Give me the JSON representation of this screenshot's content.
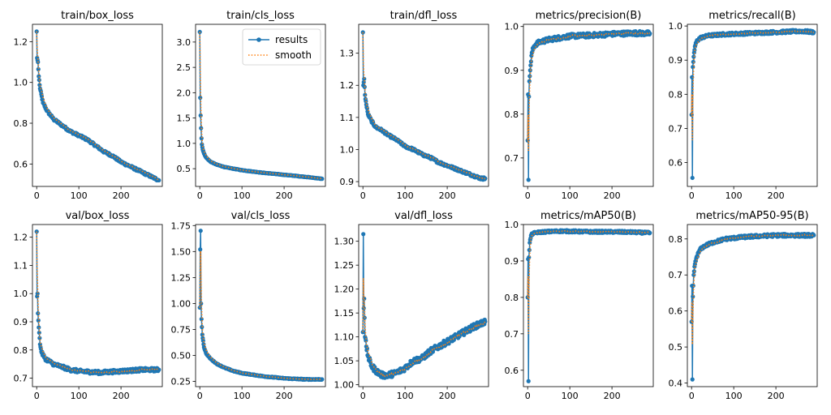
{
  "colors": {
    "results": "#1f77b4",
    "smooth": "#ff7f0e",
    "axis": "#000000"
  },
  "legend": {
    "entries": [
      "results",
      "smooth"
    ],
    "placement": "upper-right of train/cls_loss"
  },
  "chart_data": [
    {
      "type": "line",
      "title": "train/box_loss",
      "xlim": [
        -10,
        298
      ],
      "ylim": [
        0.49,
        1.285
      ],
      "xticks": [
        0,
        100,
        200
      ],
      "yticks": [
        0.6,
        0.8,
        1.0,
        1.2
      ],
      "ytick_labels": [
        "0.6",
        "0.8",
        "1.0",
        "1.2"
      ],
      "anchors": [
        [
          0,
          1.25
        ],
        [
          1,
          1.12
        ],
        [
          3,
          1.1
        ],
        [
          5,
          1.03
        ],
        [
          8,
          0.97
        ],
        [
          15,
          0.9
        ],
        [
          25,
          0.86
        ],
        [
          40,
          0.82
        ],
        [
          60,
          0.79
        ],
        [
          80,
          0.76
        ],
        [
          100,
          0.74
        ],
        [
          120,
          0.72
        ],
        [
          140,
          0.69
        ],
        [
          160,
          0.66
        ],
        [
          180,
          0.64
        ],
        [
          200,
          0.61
        ],
        [
          220,
          0.59
        ],
        [
          240,
          0.57
        ],
        [
          260,
          0.55
        ],
        [
          280,
          0.53
        ],
        [
          290,
          0.52
        ]
      ],
      "noise": 0.006
    },
    {
      "type": "line",
      "title": "train/cls_loss",
      "xlim": [
        -10,
        298
      ],
      "ylim": [
        0.15,
        3.35
      ],
      "xticks": [
        0,
        100,
        200
      ],
      "yticks": [
        0.5,
        1.0,
        1.5,
        2.0,
        2.5,
        3.0
      ],
      "ytick_labels": [
        "0.5",
        "1.0",
        "1.5",
        "2.0",
        "2.5",
        "3.0"
      ],
      "anchors": [
        [
          0,
          3.2
        ],
        [
          1,
          1.9
        ],
        [
          2,
          1.55
        ],
        [
          3,
          1.3
        ],
        [
          4,
          1.1
        ],
        [
          5,
          0.98
        ],
        [
          7,
          0.88
        ],
        [
          10,
          0.8
        ],
        [
          15,
          0.72
        ],
        [
          25,
          0.64
        ],
        [
          40,
          0.58
        ],
        [
          60,
          0.53
        ],
        [
          80,
          0.5
        ],
        [
          100,
          0.47
        ],
        [
          150,
          0.42
        ],
        [
          200,
          0.38
        ],
        [
          250,
          0.34
        ],
        [
          290,
          0.3
        ]
      ],
      "noise": 0.005
    },
    {
      "type": "line",
      "title": "train/dfl_loss",
      "xlim": [
        -10,
        298
      ],
      "ylim": [
        0.885,
        1.39
      ],
      "xticks": [
        0,
        100,
        200
      ],
      "yticks": [
        0.9,
        1.0,
        1.1,
        1.2,
        1.3
      ],
      "ytick_labels": [
        "0.9",
        "1.0",
        "1.1",
        "1.2",
        "1.3"
      ],
      "anchors": [
        [
          0,
          1.365
        ],
        [
          1,
          1.2
        ],
        [
          3,
          1.22
        ],
        [
          5,
          1.17
        ],
        [
          8,
          1.14
        ],
        [
          12,
          1.11
        ],
        [
          20,
          1.09
        ],
        [
          30,
          1.07
        ],
        [
          45,
          1.06
        ],
        [
          60,
          1.045
        ],
        [
          80,
          1.03
        ],
        [
          100,
          1.01
        ],
        [
          120,
          1.0
        ],
        [
          140,
          0.985
        ],
        [
          160,
          0.975
        ],
        [
          180,
          0.96
        ],
        [
          200,
          0.95
        ],
        [
          220,
          0.94
        ],
        [
          240,
          0.93
        ],
        [
          260,
          0.92
        ],
        [
          280,
          0.91
        ],
        [
          290,
          0.91
        ]
      ],
      "noise": 0.004
    },
    {
      "type": "line",
      "title": "metrics/precision(B)",
      "xlim": [
        -10,
        298
      ],
      "ylim": [
        0.635,
        1.005
      ],
      "xticks": [
        0,
        100,
        200
      ],
      "yticks": [
        0.7,
        0.8,
        0.9,
        1.0
      ],
      "ytick_labels": [
        "0.7",
        "0.8",
        "0.9",
        "1.0"
      ],
      "anchors": [
        [
          0,
          0.74
        ],
        [
          1,
          0.845
        ],
        [
          2,
          0.65
        ],
        [
          3,
          0.84
        ],
        [
          4,
          0.875
        ],
        [
          6,
          0.9
        ],
        [
          8,
          0.92
        ],
        [
          10,
          0.94
        ],
        [
          15,
          0.955
        ],
        [
          20,
          0.96
        ],
        [
          30,
          0.965
        ],
        [
          50,
          0.97
        ],
        [
          80,
          0.975
        ],
        [
          100,
          0.978
        ],
        [
          150,
          0.98
        ],
        [
          200,
          0.983
        ],
        [
          250,
          0.985
        ],
        [
          290,
          0.984
        ]
      ],
      "noise": 0.005
    },
    {
      "type": "line",
      "title": "metrics/recall(B)",
      "xlim": [
        -10,
        298
      ],
      "ylim": [
        0.53,
        1.005
      ],
      "xticks": [
        0,
        100,
        200
      ],
      "yticks": [
        0.6,
        0.7,
        0.8,
        0.9,
        1.0
      ],
      "ytick_labels": [
        "0.6",
        "0.7",
        "0.8",
        "0.9",
        "1.0"
      ],
      "anchors": [
        [
          0,
          0.74
        ],
        [
          1,
          0.85
        ],
        [
          2,
          0.555
        ],
        [
          3,
          0.88
        ],
        [
          5,
          0.91
        ],
        [
          8,
          0.94
        ],
        [
          12,
          0.955
        ],
        [
          20,
          0.965
        ],
        [
          40,
          0.972
        ],
        [
          80,
          0.976
        ],
        [
          120,
          0.978
        ],
        [
          200,
          0.982
        ],
        [
          260,
          0.985
        ],
        [
          290,
          0.982
        ]
      ],
      "noise": 0.004
    },
    {
      "type": "line",
      "title": "val/box_loss",
      "xlim": [
        -10,
        298
      ],
      "ylim": [
        0.67,
        1.245
      ],
      "xticks": [
        0,
        100,
        200
      ],
      "yticks": [
        0.7,
        0.8,
        0.9,
        1.0,
        1.1,
        1.2
      ],
      "ytick_labels": [
        "0.7",
        "0.8",
        "0.9",
        "1.0",
        "1.1",
        "1.2"
      ],
      "anchors": [
        [
          0,
          1.22
        ],
        [
          1,
          0.99
        ],
        [
          2,
          1.0
        ],
        [
          3,
          0.93
        ],
        [
          5,
          0.88
        ],
        [
          8,
          0.82
        ],
        [
          12,
          0.79
        ],
        [
          20,
          0.77
        ],
        [
          40,
          0.75
        ],
        [
          60,
          0.74
        ],
        [
          80,
          0.73
        ],
        [
          100,
          0.725
        ],
        [
          150,
          0.72
        ],
        [
          200,
          0.725
        ],
        [
          250,
          0.73
        ],
        [
          290,
          0.73
        ]
      ],
      "noise": 0.006
    },
    {
      "type": "line",
      "title": "val/cls_loss",
      "xlim": [
        -10,
        298
      ],
      "ylim": [
        0.2,
        1.76
      ],
      "xticks": [
        0,
        100,
        200
      ],
      "yticks": [
        0.25,
        0.5,
        0.75,
        1.0,
        1.25,
        1.5,
        1.75
      ],
      "ytick_labels": [
        "0.25",
        "0.50",
        "0.75",
        "1.00",
        "1.25",
        "1.50",
        "1.75"
      ],
      "anchors": [
        [
          0,
          0.96
        ],
        [
          1,
          1.52
        ],
        [
          2,
          1.7
        ],
        [
          3,
          1.0
        ],
        [
          4,
          0.85
        ],
        [
          6,
          0.7
        ],
        [
          10,
          0.58
        ],
        [
          15,
          0.52
        ],
        [
          25,
          0.47
        ],
        [
          40,
          0.42
        ],
        [
          60,
          0.38
        ],
        [
          80,
          0.35
        ],
        [
          100,
          0.33
        ],
        [
          150,
          0.3
        ],
        [
          200,
          0.28
        ],
        [
          250,
          0.27
        ],
        [
          290,
          0.27
        ]
      ],
      "noise": 0.004
    },
    {
      "type": "line",
      "title": "val/dfl_loss",
      "xlim": [
        -10,
        298
      ],
      "ylim": [
        0.996,
        1.335
      ],
      "xticks": [
        0,
        100,
        200
      ],
      "yticks": [
        1.0,
        1.05,
        1.1,
        1.15,
        1.2,
        1.25,
        1.3
      ],
      "ytick_labels": [
        "1.00",
        "1.05",
        "1.10",
        "1.15",
        "1.20",
        "1.25",
        "1.30"
      ],
      "anchors": [
        [
          0,
          1.11
        ],
        [
          1,
          1.315
        ],
        [
          2,
          1.16
        ],
        [
          3,
          1.18
        ],
        [
          5,
          1.1
        ],
        [
          8,
          1.08
        ],
        [
          12,
          1.06
        ],
        [
          20,
          1.04
        ],
        [
          30,
          1.03
        ],
        [
          45,
          1.02
        ],
        [
          60,
          1.02
        ],
        [
          80,
          1.025
        ],
        [
          100,
          1.035
        ],
        [
          120,
          1.05
        ],
        [
          140,
          1.055
        ],
        [
          160,
          1.07
        ],
        [
          180,
          1.08
        ],
        [
          200,
          1.09
        ],
        [
          230,
          1.105
        ],
        [
          260,
          1.12
        ],
        [
          290,
          1.132
        ]
      ],
      "noise": 0.006
    },
    {
      "type": "line",
      "title": "metrics/mAP50(B)",
      "xlim": [
        -10,
        298
      ],
      "ylim": [
        0.555,
        1.0
      ],
      "xticks": [
        0,
        100,
        200
      ],
      "yticks": [
        0.6,
        0.7,
        0.8,
        0.9,
        1.0
      ],
      "ytick_labels": [
        "0.6",
        "0.7",
        "0.8",
        "0.9",
        "1.0"
      ],
      "anchors": [
        [
          0,
          0.8
        ],
        [
          1,
          0.905
        ],
        [
          2,
          0.57
        ],
        [
          3,
          0.91
        ],
        [
          5,
          0.95
        ],
        [
          8,
          0.97
        ],
        [
          12,
          0.975
        ],
        [
          20,
          0.978
        ],
        [
          40,
          0.98
        ],
        [
          80,
          0.982
        ],
        [
          150,
          0.98
        ],
        [
          200,
          0.98
        ],
        [
          250,
          0.979
        ],
        [
          290,
          0.977
        ]
      ],
      "noise": 0.003
    },
    {
      "type": "line",
      "title": "metrics/mAP50-95(B)",
      "xlim": [
        -10,
        298
      ],
      "ylim": [
        0.39,
        0.84
      ],
      "xticks": [
        0,
        100,
        200
      ],
      "yticks": [
        0.4,
        0.5,
        0.6,
        0.7,
        0.8
      ],
      "ytick_labels": [
        "0.4",
        "0.5",
        "0.6",
        "0.7",
        "0.8"
      ],
      "anchors": [
        [
          0,
          0.57
        ],
        [
          1,
          0.67
        ],
        [
          2,
          0.41
        ],
        [
          3,
          0.64
        ],
        [
          5,
          0.7
        ],
        [
          8,
          0.73
        ],
        [
          12,
          0.75
        ],
        [
          20,
          0.77
        ],
        [
          30,
          0.78
        ],
        [
          50,
          0.79
        ],
        [
          80,
          0.8
        ],
        [
          120,
          0.805
        ],
        [
          160,
          0.808
        ],
        [
          200,
          0.81
        ],
        [
          250,
          0.81
        ],
        [
          290,
          0.81
        ]
      ],
      "noise": 0.004
    }
  ]
}
